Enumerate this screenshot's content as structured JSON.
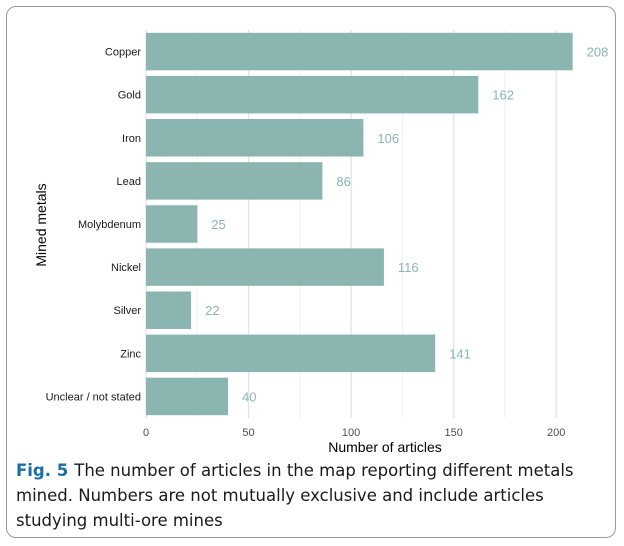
{
  "chart_data": {
    "type": "bar",
    "orientation": "horizontal",
    "categories": [
      "Copper",
      "Gold",
      "Iron",
      "Lead",
      "Molybdenum",
      "Nickel",
      "Silver",
      "Zinc",
      "Unclear / not stated"
    ],
    "values": [
      208,
      162,
      106,
      86,
      25,
      116,
      22,
      141,
      40
    ],
    "xlabel": "Number of articles",
    "ylabel": "Mined metals",
    "xlim": [
      0,
      215
    ],
    "xticks": [
      0,
      50,
      100,
      150,
      200
    ],
    "grid": true,
    "bar_color": "#8ab5b1",
    "label_color": "#8ab5b1"
  },
  "caption": {
    "label": "Fig. 5",
    "text": "The number of articles in the map reporting different metals mined. Numbers are not mutually exclusive and include articles studying multi-ore mines"
  }
}
